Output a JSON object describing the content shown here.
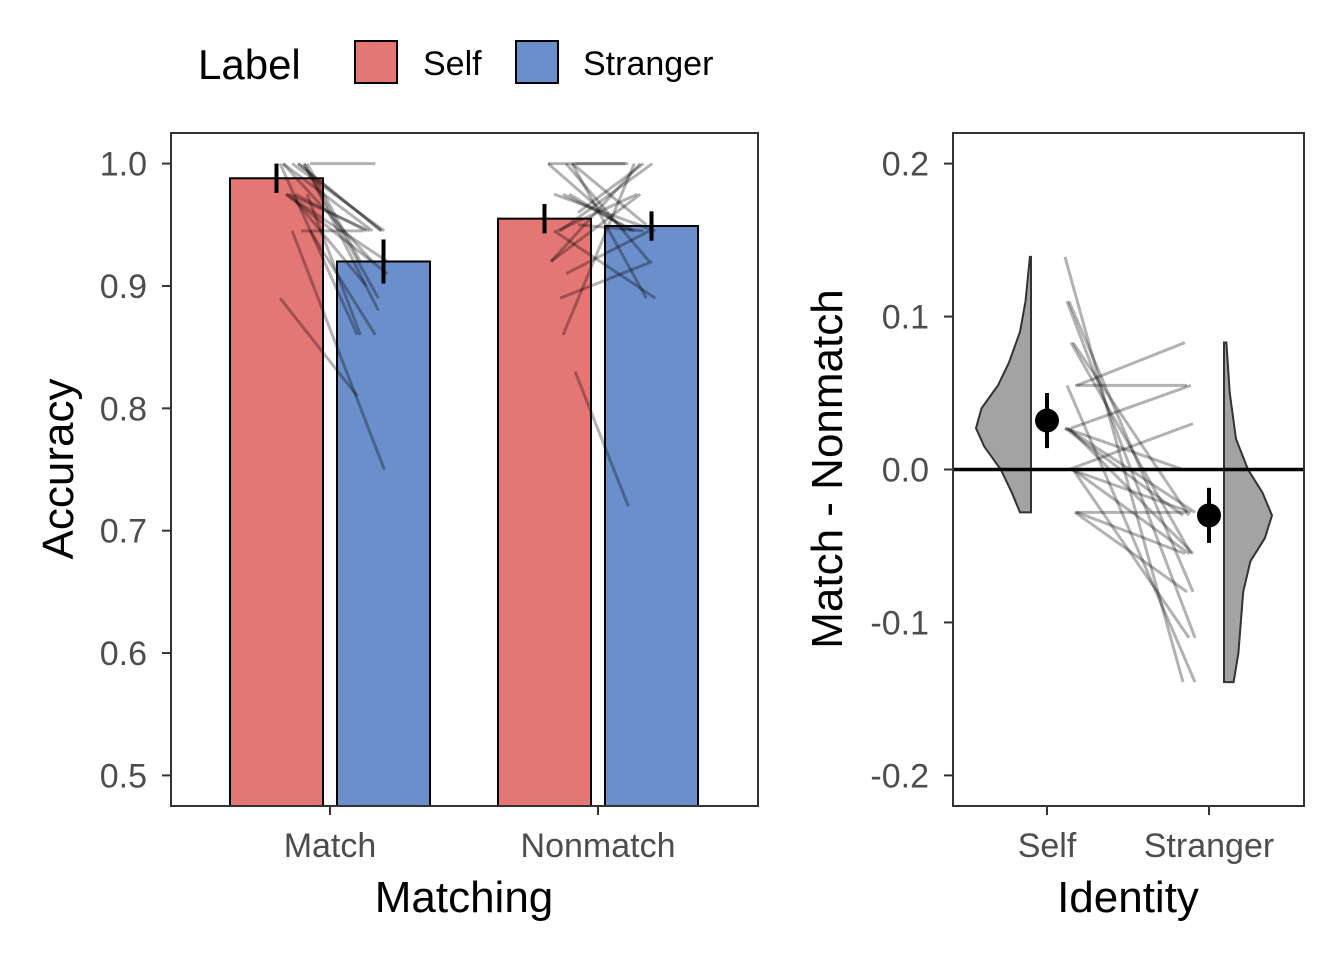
{
  "legend": {
    "title": "Label",
    "items": [
      {
        "name": "Self",
        "color": "#E47674"
      },
      {
        "name": "Stranger",
        "color": "#6A8FCA"
      }
    ]
  },
  "colors": {
    "self": "#E47674",
    "stranger": "#6A8FCA",
    "violin": "#A3A3A3",
    "lines": "#000000"
  },
  "chart_data": [
    {
      "type": "bar",
      "xlabel": "Matching",
      "ylabel": "Accuracy",
      "categories": [
        "Match",
        "Nonmatch"
      ],
      "ylim": [
        0.475,
        1.025
      ],
      "yticks": [
        0.5,
        0.6,
        0.7,
        0.8,
        0.9,
        1.0
      ],
      "ytick_labels": [
        "0.5",
        "0.6",
        "0.7",
        "0.8",
        "0.9",
        "1.0"
      ],
      "grid": false,
      "legend_position": "top",
      "series": [
        {
          "name": "Self",
          "values": [
            0.988,
            0.955
          ],
          "error": [
            0.012,
            0.012
          ]
        },
        {
          "name": "Stranger",
          "values": [
            0.92,
            0.949
          ],
          "error": [
            0.018,
            0.012
          ]
        }
      ],
      "individual_pairs": [
        {
          "category": "Match",
          "pairs": [
            [
              1.0,
              0.86
            ],
            [
              1.0,
              0.945
            ],
            [
              1.0,
              0.89
            ],
            [
              1.0,
              0.92
            ],
            [
              0.97,
              0.9
            ],
            [
              0.975,
              0.86
            ],
            [
              0.975,
              0.92
            ],
            [
              1.0,
              0.945
            ],
            [
              1.0,
              1.0
            ],
            [
              0.975,
              0.945
            ],
            [
              0.945,
              0.945
            ],
            [
              0.89,
              0.81
            ],
            [
              0.945,
              0.75
            ],
            [
              1.0,
              0.88
            ],
            [
              1.0,
              0.945
            ],
            [
              0.975,
              0.945
            ],
            [
              1.0,
              0.92
            ],
            [
              0.975,
              0.91
            ],
            [
              1.0,
              0.945
            ],
            [
              0.945,
              0.86
            ]
          ]
        },
        {
          "category": "Nonmatch",
          "pairs": [
            [
              1.0,
              0.945
            ],
            [
              0.945,
              1.0
            ],
            [
              1.0,
              0.95
            ],
            [
              0.92,
              0.975
            ],
            [
              0.86,
              1.0
            ],
            [
              0.83,
              0.72
            ],
            [
              0.975,
              0.945
            ],
            [
              1.0,
              0.92
            ],
            [
              0.95,
              0.945
            ],
            [
              0.945,
              0.975
            ],
            [
              0.975,
              0.945
            ],
            [
              1.0,
              1.0
            ],
            [
              0.89,
              0.92
            ],
            [
              1.0,
              0.89
            ],
            [
              0.92,
              1.0
            ],
            [
              0.975,
              0.945
            ],
            [
              1.0,
              1.0
            ],
            [
              0.945,
              0.89
            ],
            [
              0.91,
              0.945
            ],
            [
              0.96,
              1.0
            ]
          ]
        }
      ]
    },
    {
      "type": "violin",
      "xlabel": "Identity",
      "ylabel": "Match - Nonmatch",
      "categories": [
        "Self",
        "Stranger"
      ],
      "ylim": [
        -0.22,
        0.22
      ],
      "yticks": [
        -0.2,
        -0.1,
        0.0,
        0.1,
        0.2
      ],
      "ytick_labels": [
        "-0.2",
        "-0.1",
        "0.0",
        "0.1",
        "0.2"
      ],
      "reference_line": 0,
      "grid": false,
      "means": [
        0.032,
        -0.03
      ],
      "error": [
        0.018,
        0.018
      ],
      "distributions": [
        {
          "name": "Self",
          "min": -0.028,
          "max": 0.139,
          "profile": [
            [
              -0.028,
              0.2
            ],
            [
              -0.015,
              0.35
            ],
            [
              0.0,
              0.55
            ],
            [
              0.015,
              0.85
            ],
            [
              0.027,
              1.0
            ],
            [
              0.04,
              0.9
            ],
            [
              0.055,
              0.6
            ],
            [
              0.07,
              0.4
            ],
            [
              0.09,
              0.2
            ],
            [
              0.11,
              0.1
            ],
            [
              0.139,
              0.02
            ]
          ]
        },
        {
          "name": "Stranger",
          "min": -0.139,
          "max": 0.083,
          "profile": [
            [
              -0.139,
              0.2
            ],
            [
              -0.12,
              0.3
            ],
            [
              -0.1,
              0.35
            ],
            [
              -0.08,
              0.4
            ],
            [
              -0.06,
              0.55
            ],
            [
              -0.045,
              0.85
            ],
            [
              -0.03,
              1.0
            ],
            [
              -0.015,
              0.8
            ],
            [
              0.0,
              0.5
            ],
            [
              0.02,
              0.25
            ],
            [
              0.05,
              0.12
            ],
            [
              0.083,
              0.05
            ]
          ]
        }
      ],
      "individual_pairs": [
        [
          0.139,
          -0.139
        ],
        [
          0.11,
          -0.11
        ],
        [
          0.11,
          -0.08
        ],
        [
          0.083,
          -0.055
        ],
        [
          0.083,
          -0.03
        ],
        [
          0.055,
          0.055
        ],
        [
          0.055,
          0.083
        ],
        [
          0.027,
          0.0
        ],
        [
          0.027,
          -0.028
        ],
        [
          0.027,
          -0.055
        ],
        [
          0.0,
          -0.028
        ],
        [
          0.0,
          -0.055
        ],
        [
          -0.028,
          -0.028
        ],
        [
          -0.028,
          -0.055
        ],
        [
          0.027,
          -0.03
        ],
        [
          0.055,
          -0.139
        ],
        [
          0.0,
          0.03
        ],
        [
          0.027,
          0.055
        ],
        [
          0.0,
          -0.11
        ],
        [
          -0.028,
          -0.08
        ]
      ]
    }
  ]
}
